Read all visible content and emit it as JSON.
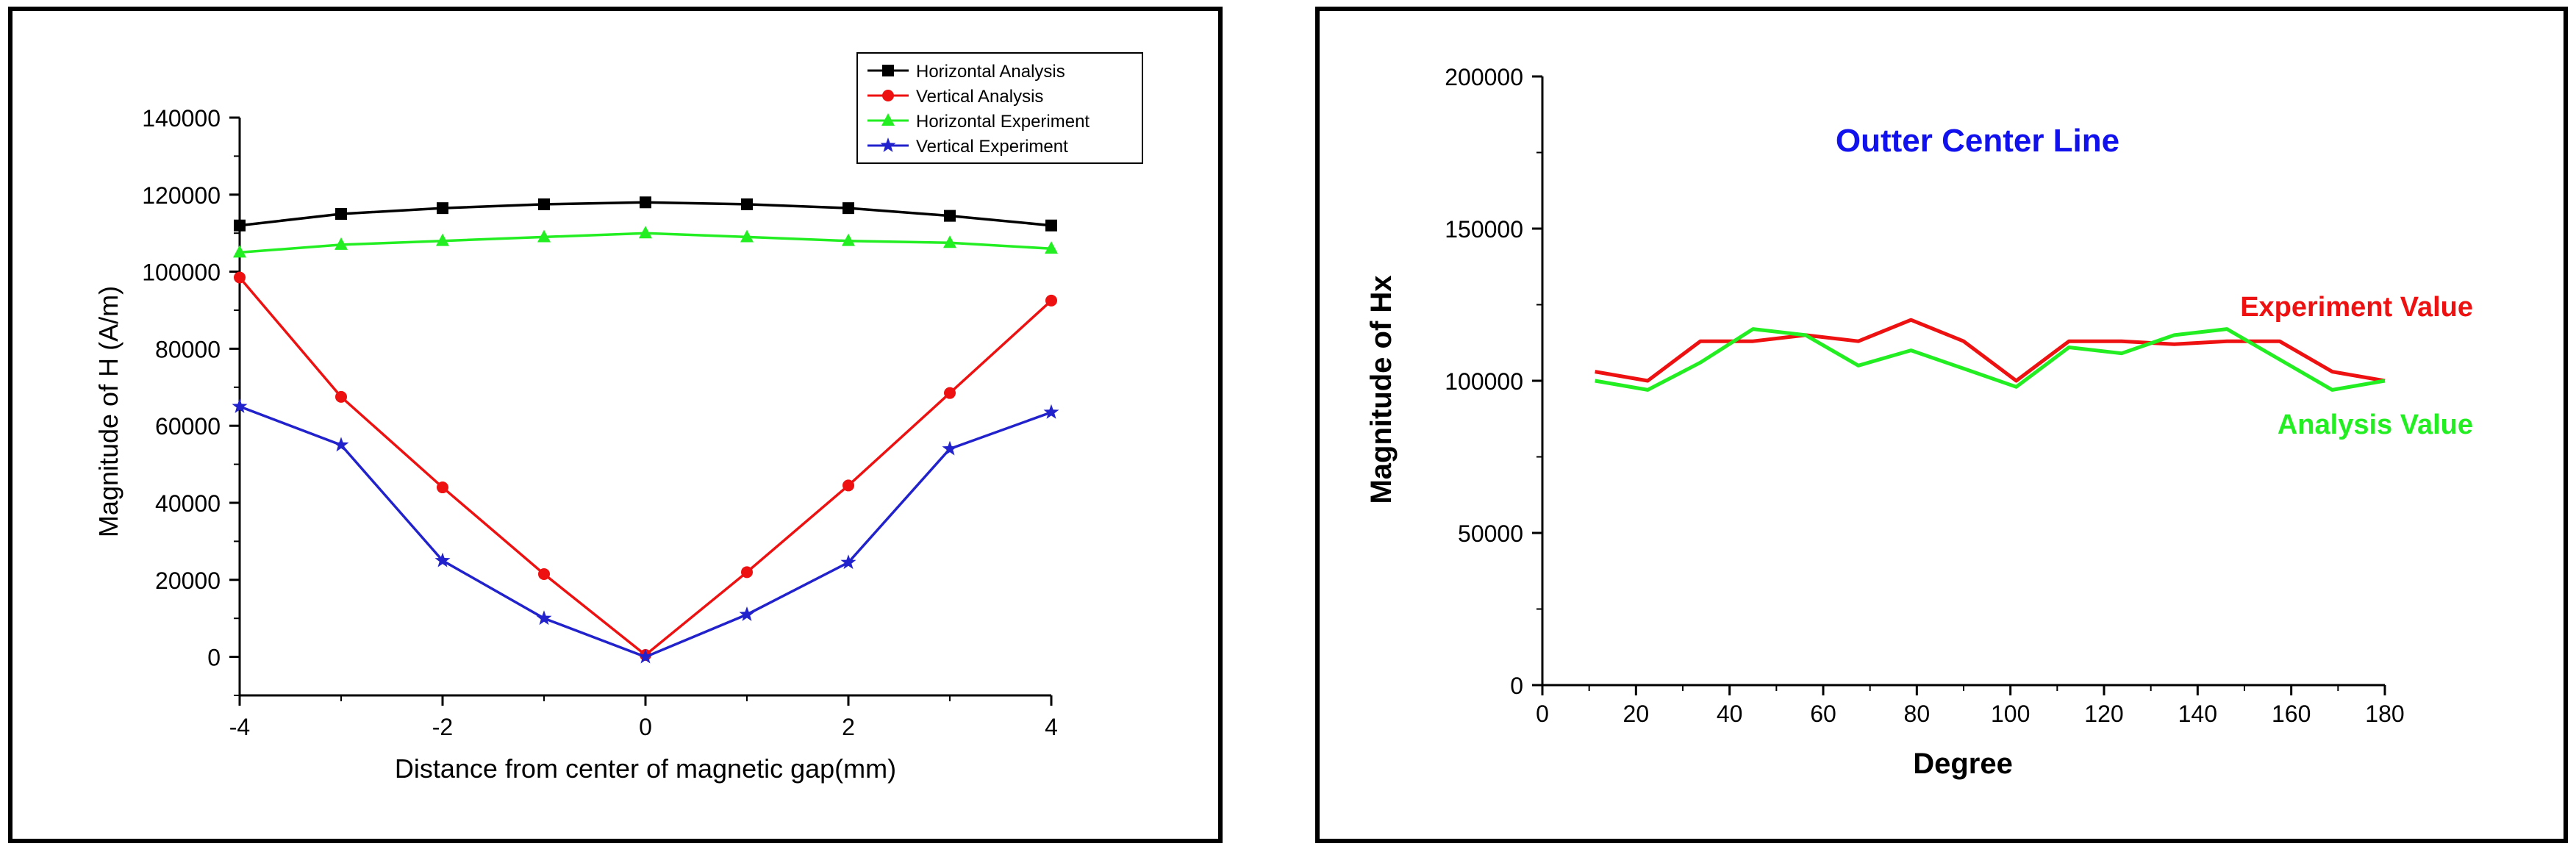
{
  "chart_data": [
    {
      "type": "line",
      "title": "",
      "xlabel": "Distance from center of magnetic gap(mm)",
      "ylabel": "Magnitude of H (A/m)",
      "xlim": [
        -4,
        4
      ],
      "ylim": [
        -10000,
        140000
      ],
      "xticks": [
        -4,
        -2,
        0,
        2,
        4
      ],
      "yticks": [
        0,
        20000,
        40000,
        60000,
        80000,
        100000,
        120000,
        140000
      ],
      "x": [
        -4,
        -3,
        -2,
        -1,
        0,
        1,
        2,
        3,
        4
      ],
      "legend_position": "top-right",
      "series": [
        {
          "name": "Horizontal Analysis",
          "color": "#000000",
          "marker": "square",
          "values": [
            112000,
            115000,
            116500,
            117500,
            118000,
            117500,
            116500,
            114500,
            112000
          ]
        },
        {
          "name": "Vertical Analysis",
          "color": "#ee1111",
          "marker": "circle",
          "values": [
            98500,
            67500,
            44000,
            21500,
            500,
            22000,
            44500,
            68500,
            92500
          ]
        },
        {
          "name": "Horizontal Experiment",
          "color": "#22ee22",
          "marker": "triangle",
          "values": [
            105000,
            107000,
            108000,
            109000,
            110000,
            109000,
            108000,
            107500,
            106000
          ]
        },
        {
          "name": "Vertical Experiment",
          "color": "#2222cc",
          "marker": "star",
          "values": [
            65000,
            55000,
            25000,
            10000,
            0,
            11000,
            24500,
            54000,
            63500
          ]
        }
      ]
    },
    {
      "type": "line",
      "title": "Outter Center Line",
      "title_color": "#1111ee",
      "xlabel": "Degree",
      "ylabel": "Magnitude of Hx",
      "xlim": [
        0,
        180
      ],
      "ylim": [
        0,
        200000
      ],
      "xticks": [
        0,
        20,
        40,
        60,
        80,
        100,
        120,
        140,
        160,
        180
      ],
      "yticks": [
        0,
        50000,
        100000,
        150000,
        200000
      ],
      "series": [
        {
          "name": "Experiment Value",
          "color": "#ee1111",
          "x": [
            11.25,
            22.5,
            33.75,
            45,
            56.25,
            67.5,
            78.75,
            90,
            101.25,
            112.5,
            123.75,
            135,
            146.25,
            157.5,
            168.75,
            180
          ],
          "values": [
            103000,
            100000,
            113000,
            113000,
            115000,
            113000,
            120000,
            113000,
            100000,
            113000,
            113000,
            112000,
            113000,
            113000,
            103000,
            100000
          ]
        },
        {
          "name": "Analysis Value",
          "color": "#22ee22",
          "x": [
            11.25,
            22.5,
            33.75,
            45,
            56.25,
            67.5,
            78.75,
            90,
            101.25,
            112.5,
            123.75,
            135,
            146.25,
            157.5,
            168.75,
            180
          ],
          "values": [
            100000,
            97000,
            106000,
            117000,
            115000,
            105000,
            110000,
            104000,
            98000,
            111000,
            109000,
            115000,
            117000,
            107000,
            97000,
            100000
          ]
        }
      ]
    }
  ]
}
